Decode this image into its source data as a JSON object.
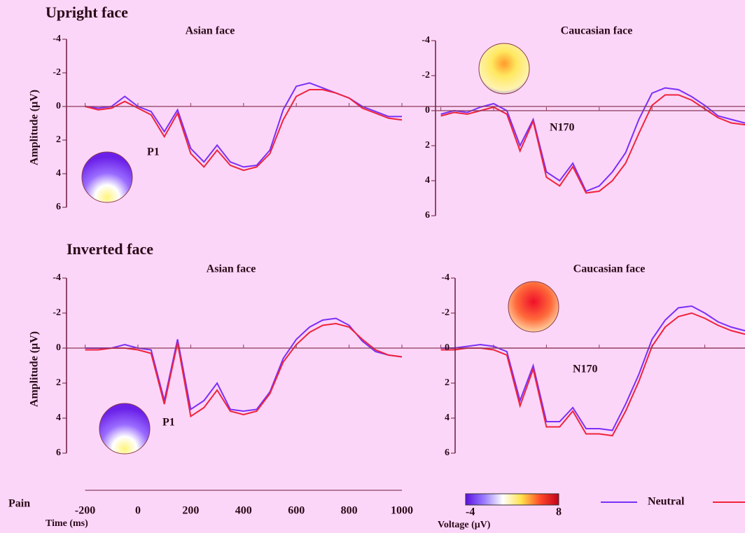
{
  "chart_data": [
    {
      "type": "line",
      "section": "Upright face",
      "title": "Asian face",
      "annotation": "P1",
      "ylim": [
        -4,
        6
      ],
      "yticks": [
        -4,
        -2,
        0,
        2,
        4,
        6
      ],
      "x": [
        -200,
        -150,
        -100,
        -50,
        0,
        50,
        100,
        150,
        200,
        250,
        300,
        350,
        400,
        450,
        500,
        550,
        600,
        650,
        700,
        750,
        800,
        850,
        900,
        950,
        1000
      ],
      "series": [
        {
          "name": "Neutral",
          "color": "#7b2ff7",
          "values": [
            0,
            0.1,
            0,
            -0.6,
            0,
            0.3,
            1.5,
            0.2,
            2.5,
            3.3,
            2.3,
            3.3,
            3.6,
            3.5,
            2.6,
            0.2,
            -1.2,
            -1.4,
            -1.1,
            -0.8,
            -0.5,
            0,
            0.3,
            0.6,
            0.6
          ]
        },
        {
          "name": "Pain",
          "color": "#f0233c",
          "values": [
            0,
            0.2,
            0.1,
            -0.3,
            0.1,
            0.5,
            1.8,
            0.4,
            2.8,
            3.6,
            2.6,
            3.5,
            3.8,
            3.6,
            2.8,
            0.8,
            -0.6,
            -1.0,
            -1.0,
            -0.8,
            -0.5,
            0.1,
            0.4,
            0.7,
            0.8
          ]
        }
      ]
    },
    {
      "type": "line",
      "title": "Caucasian face",
      "annotation": "N170",
      "ylim": [
        -4,
        6
      ],
      "yticks": [
        -4,
        -2,
        0,
        2,
        4,
        6
      ],
      "x": [
        -200,
        -150,
        -100,
        -50,
        0,
        50,
        100,
        150,
        200,
        250,
        300,
        350,
        400,
        450,
        500,
        550,
        600,
        650,
        700,
        750,
        800,
        850,
        900,
        950,
        1000
      ],
      "series": [
        {
          "name": "Neutral",
          "color": "#7b2ff7",
          "values": [
            0.2,
            0,
            0.1,
            -0.2,
            -0.4,
            0,
            2,
            0.5,
            3.5,
            4,
            3,
            4.6,
            4.3,
            3.5,
            2.4,
            0.5,
            -1,
            -1.3,
            -1.2,
            -0.8,
            -0.3,
            0.3,
            0.5,
            0.7,
            0.7
          ]
        },
        {
          "name": "Pain",
          "color": "#f0233c",
          "values": [
            0.3,
            0.1,
            0.2,
            0,
            -0.2,
            0.2,
            2.3,
            0.6,
            3.8,
            4.3,
            3.2,
            4.7,
            4.6,
            4,
            3,
            1.3,
            -0.3,
            -0.9,
            -0.9,
            -0.6,
            -0.1,
            0.4,
            0.7,
            0.8,
            0.8
          ]
        }
      ]
    },
    {
      "type": "line",
      "section": "Inverted face",
      "title": "Asian face",
      "annotation": "P1",
      "ylim": [
        -4,
        6
      ],
      "yticks": [
        -4,
        -2,
        0,
        2,
        4,
        6
      ],
      "x": [
        -200,
        -150,
        -100,
        -50,
        0,
        50,
        100,
        150,
        200,
        250,
        300,
        350,
        400,
        450,
        500,
        550,
        600,
        650,
        700,
        750,
        800,
        850,
        900,
        950,
        1000
      ],
      "series": [
        {
          "name": "Neutral",
          "color": "#7b2ff7",
          "values": [
            0,
            0,
            0,
            -0.2,
            0,
            0.1,
            3,
            -0.5,
            3.5,
            3,
            2,
            3.5,
            3.6,
            3.5,
            2.5,
            0.6,
            -0.5,
            -1.2,
            -1.6,
            -1.7,
            -1.3,
            -0.4,
            0.2,
            0.4,
            0.5
          ]
        },
        {
          "name": "Pain",
          "color": "#f0233c",
          "values": [
            0.1,
            0.1,
            0,
            0,
            0.1,
            0.3,
            3.2,
            -0.3,
            3.9,
            3.4,
            2.4,
            3.6,
            3.8,
            3.6,
            2.6,
            0.8,
            -0.2,
            -0.9,
            -1.3,
            -1.4,
            -1.2,
            -0.5,
            0.1,
            0.4,
            0.5
          ]
        }
      ]
    },
    {
      "type": "line",
      "title": "Caucasian face",
      "annotation": "N170",
      "ylim": [
        -4,
        6
      ],
      "yticks": [
        -4,
        -2,
        0,
        2,
        4,
        6
      ],
      "x": [
        -200,
        -150,
        -100,
        -50,
        0,
        50,
        100,
        150,
        200,
        250,
        300,
        350,
        400,
        450,
        500,
        550,
        600,
        650,
        700,
        750,
        800,
        850,
        900,
        950,
        1000
      ],
      "series": [
        {
          "name": "Neutral",
          "color": "#7b2ff7",
          "values": [
            0,
            0,
            -0.1,
            -0.2,
            -0.1,
            0.2,
            3,
            1,
            4.2,
            4.2,
            3.4,
            4.6,
            4.6,
            4.7,
            3.2,
            1.5,
            -0.5,
            -1.6,
            -2.3,
            -2.4,
            -2,
            -1.5,
            -1.2,
            -1,
            -0.9
          ]
        },
        {
          "name": "Pain",
          "color": "#f0233c",
          "values": [
            0.1,
            0.1,
            0,
            0,
            0.1,
            0.4,
            3.3,
            1.2,
            4.5,
            4.5,
            3.6,
            4.9,
            4.9,
            5,
            3.6,
            1.9,
            -0.1,
            -1.2,
            -1.8,
            -2,
            -1.7,
            -1.3,
            -1,
            -0.8,
            -0.7
          ]
        }
      ]
    }
  ],
  "time_axis": {
    "label": "Time (ms)",
    "xlim": [
      -200,
      1000
    ],
    "xticks": [
      -200,
      0,
      200,
      400,
      600,
      800,
      1000
    ]
  },
  "y_axis_label": "Amplitude (μV)",
  "colorbar": {
    "label": "Voltage (μV)",
    "min": -4,
    "max": 8,
    "colors": [
      "#5a10e0",
      "#9a7cff",
      "#ffffff",
      "#ffe14a",
      "#ff4a2a",
      "#c0001a"
    ]
  }
}
